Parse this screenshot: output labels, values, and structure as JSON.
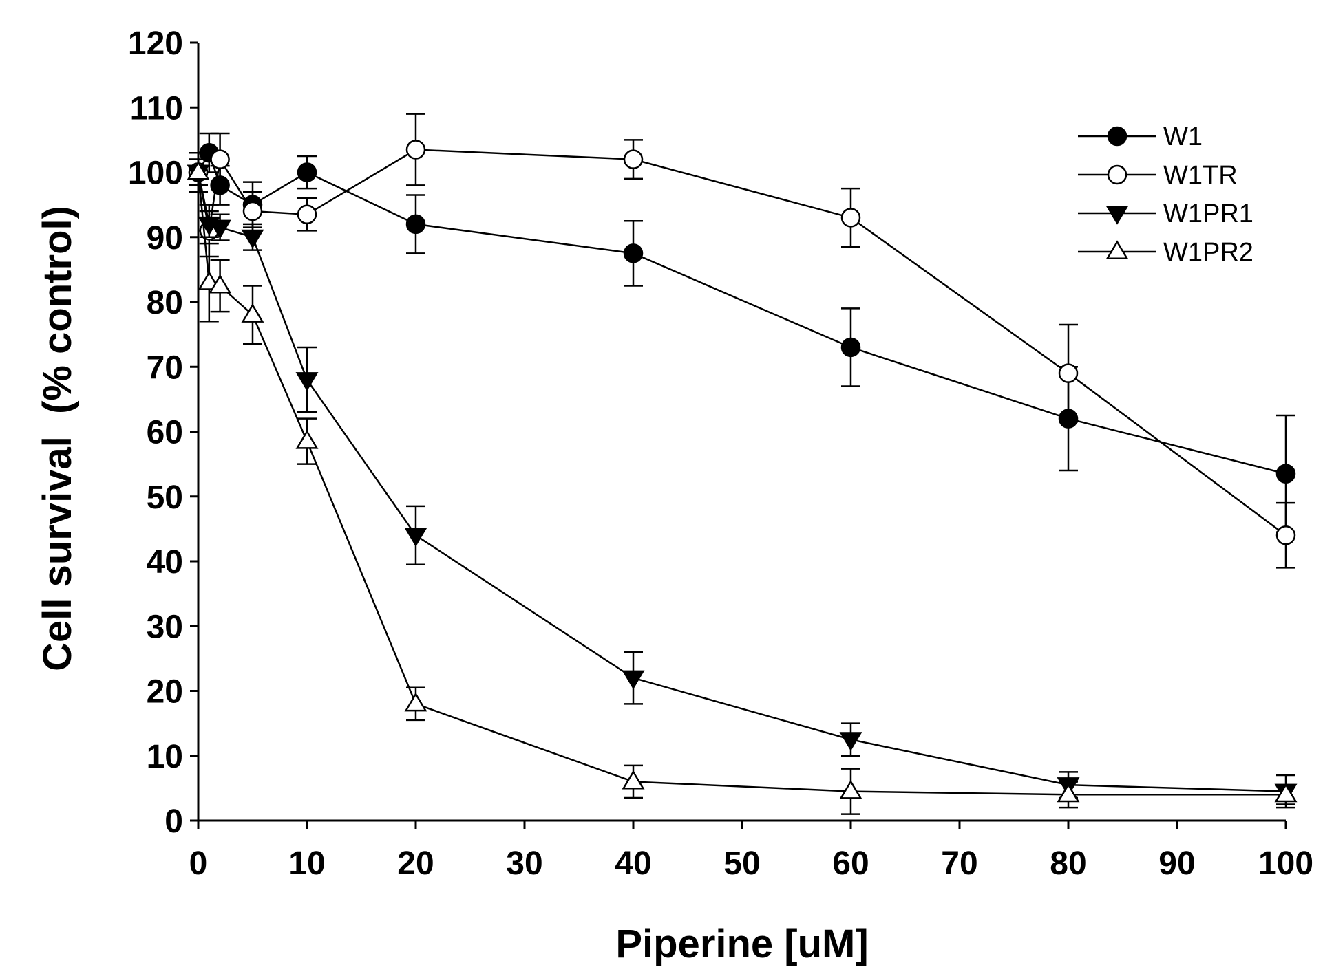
{
  "chart_data": {
    "type": "line",
    "title": "",
    "xlabel": "Piperine [uM]",
    "ylabel": "Cell survival  (% control)",
    "xlim": [
      0,
      100
    ],
    "ylim": [
      0,
      120
    ],
    "xticks": [
      0,
      10,
      20,
      30,
      40,
      50,
      60,
      70,
      80,
      90,
      100
    ],
    "yticks": [
      0,
      10,
      20,
      30,
      40,
      50,
      60,
      70,
      80,
      90,
      100,
      110,
      120
    ],
    "grid": false,
    "legend_position": "top-right",
    "series": [
      {
        "name": "W1",
        "marker": "filled-circle",
        "x": [
          0,
          1,
          2,
          5,
          10,
          20,
          40,
          60,
          80,
          100
        ],
        "y": [
          100,
          103,
          98,
          95,
          100,
          92,
          87.5,
          73,
          62,
          53.5
        ],
        "err": [
          3,
          3,
          3,
          3.5,
          2.5,
          4.5,
          5,
          6,
          8,
          9
        ]
      },
      {
        "name": "W1TR",
        "marker": "open-circle",
        "x": [
          0,
          1,
          2,
          5,
          10,
          20,
          40,
          60,
          80,
          100
        ],
        "y": [
          100,
          91,
          102,
          94,
          93.5,
          103.5,
          102,
          93,
          69,
          44
        ],
        "err": [
          2,
          4,
          4,
          3,
          2.5,
          5.5,
          3,
          4.5,
          7.5,
          5
        ]
      },
      {
        "name": "W1PR1",
        "marker": "filled-triangle-down",
        "x": [
          0,
          1,
          2,
          5,
          10,
          20,
          40,
          60,
          80,
          100
        ],
        "y": [
          100,
          92,
          91.5,
          90,
          68,
          44,
          22,
          12.5,
          5.5,
          4.5
        ],
        "err": [
          2,
          2,
          2,
          2,
          5,
          4.5,
          4,
          2.5,
          2,
          2.5
        ]
      },
      {
        "name": "W1PR2",
        "marker": "open-triangle-up",
        "x": [
          0,
          1,
          2,
          5,
          10,
          20,
          40,
          60,
          80,
          100
        ],
        "y": [
          100,
          83,
          82.5,
          78,
          58.5,
          18,
          6,
          4.5,
          4,
          4
        ],
        "err": [
          2,
          6,
          4,
          4.5,
          3.5,
          2.5,
          2.5,
          3.5,
          2,
          1.5
        ]
      }
    ]
  }
}
